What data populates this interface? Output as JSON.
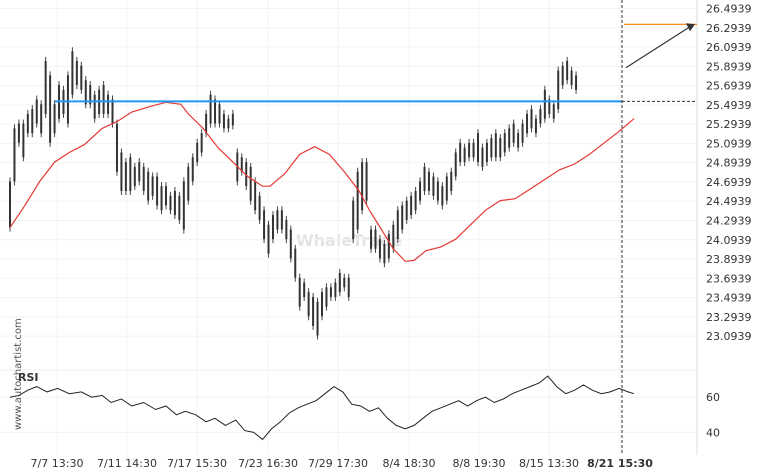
{
  "chart_data": {
    "type": "candlestick",
    "watermark": "WhaleTrade",
    "side_brand": "www.autochartist.com",
    "price_axis": {
      "ticks": [
        "26.4939",
        "26.2939",
        "26.0939",
        "25.8939",
        "25.6939",
        "25.4939",
        "25.2939",
        "25.0939",
        "24.8939",
        "24.6939",
        "24.4939",
        "24.2939",
        "24.0939",
        "23.8939",
        "23.6939",
        "23.4939",
        "23.2939",
        "23.0939"
      ],
      "ylim": [
        22.96,
        26.52
      ]
    },
    "time_axis": {
      "ticks": [
        "7/7 13:30",
        "7/11 14:30",
        "7/17 15:30",
        "7/23 16:30",
        "7/29 17:30",
        "8/4 18:30",
        "8/8 19:30",
        "8/15 13:30",
        "8/21 15:30"
      ],
      "highlighted": "8/21 15:30"
    },
    "resistance_level": 25.53,
    "target_level": 26.33,
    "moving_average": [
      [
        0,
        24.22
      ],
      [
        10,
        24.45
      ],
      [
        20,
        24.7
      ],
      [
        30,
        24.9
      ],
      [
        40,
        25.0
      ],
      [
        50,
        25.08
      ],
      [
        62,
        25.25
      ],
      [
        72,
        25.32
      ],
      [
        82,
        25.42
      ],
      [
        95,
        25.48
      ],
      [
        105,
        25.52
      ],
      [
        115,
        25.5
      ],
      [
        120,
        25.4
      ],
      [
        130,
        25.25
      ],
      [
        140,
        25.05
      ],
      [
        150,
        24.9
      ],
      [
        160,
        24.75
      ],
      [
        170,
        24.65
      ],
      [
        175,
        24.65
      ],
      [
        185,
        24.78
      ],
      [
        195,
        24.98
      ],
      [
        205,
        25.06
      ],
      [
        215,
        24.98
      ],
      [
        225,
        24.8
      ],
      [
        235,
        24.6
      ],
      [
        242,
        24.4
      ],
      [
        250,
        24.2
      ],
      [
        258,
        24.0
      ],
      [
        266,
        23.87
      ],
      [
        272,
        23.88
      ],
      [
        280,
        23.98
      ],
      [
        290,
        24.02
      ],
      [
        300,
        24.1
      ],
      [
        310,
        24.25
      ],
      [
        320,
        24.4
      ],
      [
        330,
        24.5
      ],
      [
        340,
        24.52
      ],
      [
        350,
        24.62
      ],
      [
        360,
        24.72
      ],
      [
        370,
        24.82
      ],
      [
        380,
        24.88
      ],
      [
        390,
        24.98
      ],
      [
        400,
        25.1
      ],
      [
        410,
        25.22
      ],
      [
        420,
        25.35
      ]
    ],
    "rsi": {
      "label": "RSI",
      "ticks": [
        "60",
        "40"
      ],
      "ylim": [
        30,
        80
      ],
      "values": [
        [
          0,
          60
        ],
        [
          6,
          61
        ],
        [
          12,
          64
        ],
        [
          18,
          66
        ],
        [
          25,
          63
        ],
        [
          32,
          65
        ],
        [
          40,
          62
        ],
        [
          48,
          63
        ],
        [
          55,
          60
        ],
        [
          62,
          61
        ],
        [
          68,
          57
        ],
        [
          75,
          59
        ],
        [
          82,
          55
        ],
        [
          90,
          57
        ],
        [
          98,
          53
        ],
        [
          105,
          55
        ],
        [
          112,
          50
        ],
        [
          118,
          52
        ],
        [
          125,
          50
        ],
        [
          132,
          46
        ],
        [
          138,
          48
        ],
        [
          145,
          44
        ],
        [
          152,
          47
        ],
        [
          158,
          41
        ],
        [
          164,
          40
        ],
        [
          170,
          36
        ],
        [
          176,
          42
        ],
        [
          182,
          46
        ],
        [
          188,
          51
        ],
        [
          194,
          54
        ],
        [
          200,
          56
        ],
        [
          206,
          58
        ],
        [
          212,
          62
        ],
        [
          218,
          66
        ],
        [
          224,
          63
        ],
        [
          230,
          56
        ],
        [
          236,
          55
        ],
        [
          242,
          52
        ],
        [
          248,
          54
        ],
        [
          254,
          48
        ],
        [
          260,
          44
        ],
        [
          266,
          42
        ],
        [
          272,
          44
        ],
        [
          278,
          48
        ],
        [
          284,
          52
        ],
        [
          290,
          54
        ],
        [
          296,
          56
        ],
        [
          302,
          58
        ],
        [
          308,
          55
        ],
        [
          314,
          58
        ],
        [
          320,
          60
        ],
        [
          326,
          57
        ],
        [
          332,
          59
        ],
        [
          338,
          62
        ],
        [
          344,
          64
        ],
        [
          350,
          66
        ],
        [
          356,
          68
        ],
        [
          362,
          72
        ],
        [
          368,
          66
        ],
        [
          374,
          62
        ],
        [
          380,
          64
        ],
        [
          386,
          67
        ],
        [
          392,
          64
        ],
        [
          398,
          62
        ],
        [
          404,
          63
        ],
        [
          410,
          65
        ],
        [
          416,
          63
        ],
        [
          420,
          62
        ]
      ]
    },
    "candles": [
      [
        0,
        24.22,
        24.7
      ],
      [
        3,
        24.7,
        25.25
      ],
      [
        6,
        25.1,
        25.3
      ],
      [
        9,
        24.95,
        25.3
      ],
      [
        12,
        25.2,
        25.4
      ],
      [
        15,
        25.2,
        25.45
      ],
      [
        18,
        25.3,
        25.55
      ],
      [
        21,
        25.2,
        25.5
      ],
      [
        24,
        25.4,
        25.95
      ],
      [
        27,
        25.1,
        25.8
      ],
      [
        30,
        25.2,
        25.5
      ],
      [
        33,
        25.35,
        25.7
      ],
      [
        36,
        25.4,
        25.65
      ],
      [
        39,
        25.3,
        25.8
      ],
      [
        42,
        25.6,
        26.05
      ],
      [
        45,
        25.7,
        25.95
      ],
      [
        48,
        25.65,
        25.9
      ],
      [
        51,
        25.5,
        25.75
      ],
      [
        54,
        25.5,
        25.7
      ],
      [
        57,
        25.35,
        25.6
      ],
      [
        60,
        25.4,
        25.65
      ],
      [
        63,
        25.4,
        25.7
      ],
      [
        66,
        25.4,
        25.6
      ],
      [
        69,
        25.3,
        25.55
      ],
      [
        72,
        24.8,
        25.3
      ],
      [
        75,
        24.6,
        25.0
      ],
      [
        78,
        24.6,
        24.9
      ],
      [
        81,
        24.6,
        24.95
      ],
      [
        84,
        24.65,
        24.85
      ],
      [
        87,
        24.7,
        24.9
      ],
      [
        90,
        24.6,
        24.85
      ],
      [
        93,
        24.5,
        24.8
      ],
      [
        96,
        24.55,
        24.75
      ],
      [
        99,
        24.45,
        24.75
      ],
      [
        102,
        24.4,
        24.65
      ],
      [
        105,
        24.45,
        24.65
      ],
      [
        108,
        24.4,
        24.55
      ],
      [
        111,
        24.35,
        24.6
      ],
      [
        114,
        24.3,
        24.55
      ],
      [
        117,
        24.2,
        24.7
      ],
      [
        120,
        24.5,
        24.85
      ],
      [
        123,
        24.7,
        24.95
      ],
      [
        126,
        24.9,
        25.1
      ],
      [
        129,
        25.0,
        25.2
      ],
      [
        132,
        25.2,
        25.4
      ],
      [
        135,
        25.3,
        25.6
      ],
      [
        138,
        25.3,
        25.55
      ],
      [
        141,
        25.3,
        25.5
      ],
      [
        144,
        25.25,
        25.4
      ],
      [
        147,
        25.25,
        25.35
      ],
      [
        150,
        25.28,
        25.4
      ],
      [
        153,
        24.7,
        25.0
      ],
      [
        156,
        24.8,
        24.95
      ],
      [
        159,
        24.65,
        24.9
      ],
      [
        162,
        24.5,
        24.85
      ],
      [
        165,
        24.4,
        24.7
      ],
      [
        168,
        24.3,
        24.55
      ],
      [
        171,
        24.1,
        24.4
      ],
      [
        174,
        23.95,
        24.25
      ],
      [
        177,
        24.1,
        24.35
      ],
      [
        180,
        24.2,
        24.4
      ],
      [
        183,
        24.2,
        24.4
      ],
      [
        186,
        24.1,
        24.3
      ],
      [
        189,
        23.9,
        24.2
      ],
      [
        192,
        23.7,
        24.0
      ],
      [
        195,
        23.4,
        23.7
      ],
      [
        198,
        23.5,
        23.65
      ],
      [
        201,
        23.3,
        23.55
      ],
      [
        204,
        23.2,
        23.5
      ],
      [
        207,
        23.1,
        23.45
      ],
      [
        210,
        23.3,
        23.55
      ],
      [
        213,
        23.4,
        23.6
      ],
      [
        216,
        23.5,
        23.6
      ],
      [
        219,
        23.5,
        23.65
      ],
      [
        222,
        23.55,
        23.75
      ],
      [
        225,
        23.6,
        23.7
      ],
      [
        228,
        23.5,
        23.7
      ],
      [
        231,
        24.1,
        24.5
      ],
      [
        234,
        24.2,
        24.8
      ],
      [
        237,
        24.4,
        24.9
      ],
      [
        240,
        24.5,
        24.9
      ],
      [
        243,
        24.0,
        24.2
      ],
      [
        246,
        24.0,
        24.2
      ],
      [
        249,
        23.9,
        24.1
      ],
      [
        252,
        23.85,
        24.05
      ],
      [
        255,
        23.9,
        24.15
      ],
      [
        258,
        24.0,
        24.25
      ],
      [
        261,
        24.1,
        24.4
      ],
      [
        264,
        24.2,
        24.45
      ],
      [
        267,
        24.3,
        24.5
      ],
      [
        270,
        24.35,
        24.55
      ],
      [
        273,
        24.4,
        24.6
      ],
      [
        276,
        24.5,
        24.7
      ],
      [
        279,
        24.6,
        24.85
      ],
      [
        282,
        24.6,
        24.8
      ],
      [
        285,
        24.55,
        24.75
      ],
      [
        288,
        24.5,
        24.7
      ],
      [
        291,
        24.45,
        24.65
      ],
      [
        294,
        24.5,
        24.75
      ],
      [
        297,
        24.6,
        24.8
      ],
      [
        300,
        24.75,
        25.0
      ],
      [
        303,
        24.9,
        25.1
      ],
      [
        306,
        24.9,
        25.05
      ],
      [
        309,
        24.95,
        25.1
      ],
      [
        312,
        24.95,
        25.1
      ],
      [
        315,
        24.9,
        25.2
      ],
      [
        318,
        24.85,
        25.05
      ],
      [
        321,
        24.9,
        25.1
      ],
      [
        324,
        24.95,
        25.15
      ],
      [
        327,
        24.95,
        25.2
      ],
      [
        330,
        24.95,
        25.15
      ],
      [
        333,
        25.0,
        25.2
      ],
      [
        336,
        25.05,
        25.25
      ],
      [
        339,
        25.1,
        25.3
      ],
      [
        342,
        25.05,
        25.2
      ],
      [
        345,
        25.1,
        25.3
      ],
      [
        348,
        25.2,
        25.4
      ],
      [
        351,
        25.25,
        25.45
      ],
      [
        354,
        25.2,
        25.35
      ],
      [
        357,
        25.3,
        25.45
      ],
      [
        360,
        25.35,
        25.65
      ],
      [
        363,
        25.4,
        25.55
      ],
      [
        366,
        25.35,
        25.5
      ],
      [
        369,
        25.45,
        25.85
      ],
      [
        372,
        25.7,
        25.9
      ],
      [
        375,
        25.75,
        25.95
      ],
      [
        378,
        25.7,
        25.85
      ],
      [
        381,
        25.65,
        25.8
      ]
    ]
  }
}
